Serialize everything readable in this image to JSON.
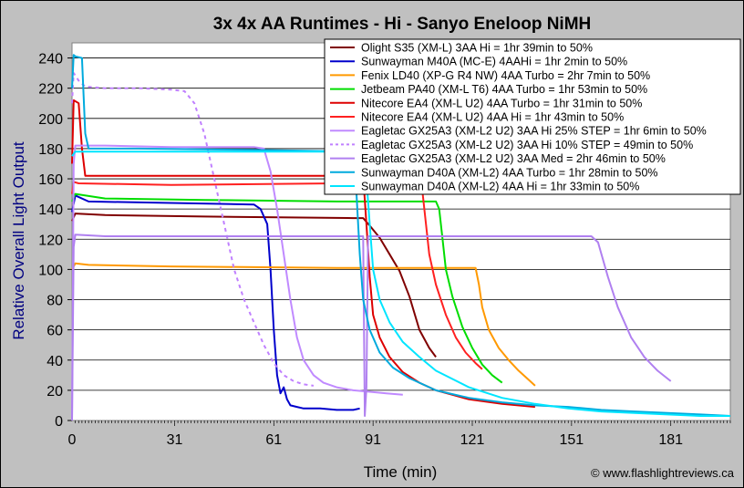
{
  "chart_data": {
    "type": "line",
    "title": "3x 4x AA Runtimes - Hi - Sanyo Eneloop NiMH",
    "xlabel": "Time (min)",
    "ylabel": "Relative Overall Light Output",
    "xlim": [
      0,
      199
    ],
    "ylim": [
      0,
      250
    ],
    "xticks": [
      0,
      31,
      61,
      91,
      121,
      151,
      181
    ],
    "yticks": [
      0,
      20,
      40,
      60,
      80,
      100,
      120,
      140,
      160,
      180,
      200,
      220,
      240
    ],
    "credit": "© www.flashlightreviews.ca",
    "grid": "horizontal",
    "legend_position": "top-right",
    "series": [
      {
        "name": "Olight S35 (XM-L) 3AA Hi = 1hr 39min to 50%",
        "color": "#800000",
        "dash": false,
        "points": [
          [
            0,
            132
          ],
          [
            1,
            137
          ],
          [
            10,
            136
          ],
          [
            40,
            135
          ],
          [
            85,
            134
          ],
          [
            88,
            134
          ],
          [
            90,
            129
          ],
          [
            93,
            121
          ],
          [
            96,
            110
          ],
          [
            99,
            99
          ],
          [
            102,
            82
          ],
          [
            105,
            60
          ],
          [
            108,
            48
          ],
          [
            110,
            42
          ]
        ]
      },
      {
        "name": "Sunwayman M40A (MC-E) 4AAHi = 1hr 2min to 50%",
        "color": "#0000cc",
        "dash": false,
        "points": [
          [
            0,
            138
          ],
          [
            1,
            149
          ],
          [
            5,
            145
          ],
          [
            30,
            144
          ],
          [
            55,
            143
          ],
          [
            57,
            140
          ],
          [
            59,
            130
          ],
          [
            60,
            100
          ],
          [
            61,
            60
          ],
          [
            62,
            30
          ],
          [
            63,
            18
          ],
          [
            64,
            22
          ],
          [
            65,
            14
          ],
          [
            66,
            10
          ],
          [
            68,
            9
          ],
          [
            70,
            8
          ],
          [
            75,
            8
          ],
          [
            80,
            7
          ],
          [
            85,
            7
          ],
          [
            87,
            8
          ]
        ]
      },
      {
        "name": "Fenix LD40 (XP-G R4 NW) 4AA Turbo = 2hr 7min to 50%",
        "color": "#ff9900",
        "dash": false,
        "points": [
          [
            0,
            100
          ],
          [
            1,
            104
          ],
          [
            5,
            103
          ],
          [
            30,
            102
          ],
          [
            80,
            101
          ],
          [
            120,
            101
          ],
          [
            122,
            101
          ],
          [
            123,
            90
          ],
          [
            124,
            75
          ],
          [
            126,
            60
          ],
          [
            129,
            48
          ],
          [
            132,
            40
          ],
          [
            135,
            33
          ],
          [
            138,
            27
          ],
          [
            140,
            23
          ]
        ]
      },
      {
        "name": "Jetbeam PA40 (XM-L T6) 4AA Turbo = 1hr 53min to 50%",
        "color": "#00dd00",
        "dash": false,
        "points": [
          [
            0,
            145
          ],
          [
            1,
            150
          ],
          [
            10,
            147
          ],
          [
            40,
            146
          ],
          [
            80,
            145
          ],
          [
            110,
            145
          ],
          [
            111,
            140
          ],
          [
            112,
            120
          ],
          [
            113,
            100
          ],
          [
            115,
            82
          ],
          [
            118,
            62
          ],
          [
            121,
            48
          ],
          [
            124,
            37
          ],
          [
            127,
            30
          ],
          [
            130,
            25
          ]
        ]
      },
      {
        "name": "Nitecore EA4 (XM-L U2) 4AA Turbo = 1hr 31min to 50%",
        "color": "#dd0000",
        "dash": false,
        "points": [
          [
            0,
            170
          ],
          [
            0.5,
            212
          ],
          [
            2,
            210
          ],
          [
            3,
            180
          ],
          [
            4,
            162
          ],
          [
            20,
            162
          ],
          [
            60,
            162
          ],
          [
            88,
            162
          ],
          [
            89,
            130
          ],
          [
            90,
            95
          ],
          [
            91,
            70
          ],
          [
            93,
            55
          ],
          [
            96,
            42
          ],
          [
            100,
            32
          ],
          [
            105,
            25
          ],
          [
            110,
            20
          ],
          [
            115,
            17
          ],
          [
            120,
            14
          ],
          [
            130,
            11
          ],
          [
            140,
            9
          ]
        ]
      },
      {
        "name": "Nitecore EA4 (XM-L U2) 4AA Hi = 1hr 43min to 50%",
        "color": "#ff2020",
        "dash": false,
        "points": [
          [
            0,
            150
          ],
          [
            0.5,
            158
          ],
          [
            2,
            157
          ],
          [
            30,
            156
          ],
          [
            80,
            157
          ],
          [
            105,
            157
          ],
          [
            106,
            150
          ],
          [
            107,
            130
          ],
          [
            108,
            110
          ],
          [
            110,
            90
          ],
          [
            113,
            70
          ],
          [
            116,
            55
          ],
          [
            119,
            45
          ],
          [
            122,
            38
          ],
          [
            124,
            34
          ]
        ]
      },
      {
        "name": "Eagletac GX25A3 (XM-L2 U2) 3AA Hi 25% STEP = 1hr 6min to 50%",
        "color": "#c08aff",
        "dash": false,
        "points": [
          [
            0,
            0
          ],
          [
            0.5,
            170
          ],
          [
            1,
            182
          ],
          [
            10,
            182
          ],
          [
            30,
            181
          ],
          [
            55,
            181
          ],
          [
            58,
            180
          ],
          [
            60,
            165
          ],
          [
            62,
            140
          ],
          [
            64,
            110
          ],
          [
            66,
            80
          ],
          [
            68,
            55
          ],
          [
            70,
            40
          ],
          [
            73,
            30
          ],
          [
            76,
            25
          ],
          [
            80,
            22
          ],
          [
            85,
            20
          ],
          [
            90,
            19
          ],
          [
            95,
            18
          ],
          [
            100,
            17
          ]
        ]
      },
      {
        "name": "Eagletac GX25A3 (XM-L2 U2) 3AA Hi 10% STEP = 49min to 50%",
        "color": "#c080ff",
        "dash": true,
        "points": [
          [
            0,
            210
          ],
          [
            0.5,
            230
          ],
          [
            2,
            225
          ],
          [
            4,
            221
          ],
          [
            10,
            220
          ],
          [
            20,
            220
          ],
          [
            30,
            219
          ],
          [
            34,
            218
          ],
          [
            37,
            210
          ],
          [
            40,
            190
          ],
          [
            43,
            160
          ],
          [
            46,
            130
          ],
          [
            49,
            100
          ],
          [
            52,
            80
          ],
          [
            55,
            65
          ],
          [
            58,
            50
          ],
          [
            61,
            38
          ],
          [
            64,
            30
          ],
          [
            67,
            26
          ],
          [
            70,
            24
          ],
          [
            73,
            23
          ]
        ]
      },
      {
        "name": "Eagletac GX25A3 (XM-L2 U2) 3AA Med = 2hr 46min to 50%",
        "color": "#b080f0",
        "dash": false,
        "points": [
          [
            0,
            0
          ],
          [
            0.5,
            115
          ],
          [
            1,
            123
          ],
          [
            10,
            122
          ],
          [
            50,
            122
          ],
          [
            88,
            122
          ],
          [
            88.5,
            3
          ],
          [
            89,
            22
          ],
          [
            89.5,
            122
          ],
          [
            120,
            122
          ],
          [
            150,
            122
          ],
          [
            157,
            122
          ],
          [
            159,
            118
          ],
          [
            162,
            95
          ],
          [
            165,
            75
          ],
          [
            169,
            55
          ],
          [
            173,
            42
          ],
          [
            177,
            33
          ],
          [
            181,
            26
          ]
        ]
      },
      {
        "name": "Sunwayman D40A (XM-L2) 4AA Turbo = 1hr 28min to 50%",
        "color": "#00aadd",
        "dash": false,
        "points": [
          [
            0,
            220
          ],
          [
            0.5,
            242
          ],
          [
            1,
            241
          ],
          [
            3,
            240
          ],
          [
            4,
            190
          ],
          [
            5,
            180
          ],
          [
            20,
            180
          ],
          [
            60,
            179
          ],
          [
            85,
            178
          ],
          [
            86,
            150
          ],
          [
            87,
            110
          ],
          [
            88,
            80
          ],
          [
            90,
            60
          ],
          [
            93,
            45
          ],
          [
            97,
            35
          ],
          [
            102,
            28
          ],
          [
            110,
            20
          ],
          [
            120,
            15
          ],
          [
            130,
            12
          ],
          [
            140,
            10
          ],
          [
            150,
            9
          ],
          [
            160,
            7
          ],
          [
            170,
            6
          ],
          [
            180,
            5
          ],
          [
            190,
            4
          ],
          [
            199,
            3
          ]
        ]
      },
      {
        "name": "Sunwayman D40A (XM-L2) 4AA Hi = 1hr 33min to 50%",
        "color": "#00e5ff",
        "dash": false,
        "points": [
          [
            0,
            175
          ],
          [
            1,
            178
          ],
          [
            30,
            178
          ],
          [
            60,
            178
          ],
          [
            88,
            178
          ],
          [
            89,
            160
          ],
          [
            90,
            130
          ],
          [
            91,
            100
          ],
          [
            93,
            80
          ],
          [
            96,
            65
          ],
          [
            100,
            52
          ],
          [
            105,
            42
          ],
          [
            110,
            33
          ],
          [
            120,
            22
          ],
          [
            130,
            15
          ],
          [
            140,
            11
          ],
          [
            150,
            8
          ],
          [
            160,
            6
          ],
          [
            170,
            5
          ],
          [
            180,
            4
          ],
          [
            190,
            3
          ],
          [
            199,
            3
          ]
        ]
      }
    ]
  }
}
